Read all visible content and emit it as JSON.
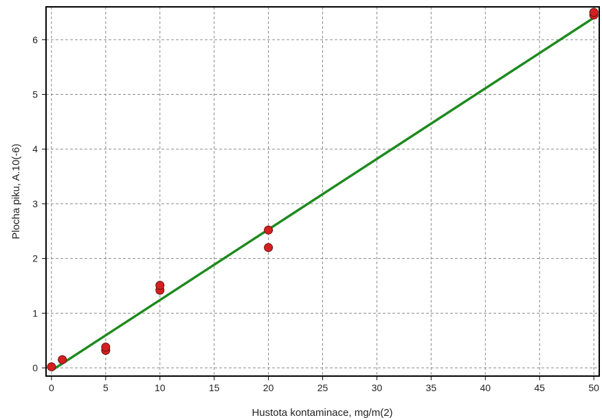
{
  "chart_data": {
    "type": "scatter",
    "xlabel": "Hustota kontaminace, mg/m(2)",
    "ylabel": "Plocha piku, A.10(-6)",
    "xlim": [
      -0.5,
      50.5
    ],
    "ylim": [
      -0.15,
      6.6
    ],
    "x_ticks": [
      0,
      5,
      10,
      15,
      20,
      25,
      30,
      35,
      40,
      45,
      50
    ],
    "y_ticks": [
      0,
      1,
      2,
      3,
      4,
      5,
      6
    ],
    "grid": true,
    "legend": "none",
    "series": [
      {
        "type": "scatter",
        "color": "#d42020",
        "points": [
          {
            "x": 0,
            "y": 0.02
          },
          {
            "x": 1,
            "y": 0.15
          },
          {
            "x": 5,
            "y": 0.32
          },
          {
            "x": 5,
            "y": 0.38
          },
          {
            "x": 10,
            "y": 1.42
          },
          {
            "x": 10,
            "y": 1.51
          },
          {
            "x": 20,
            "y": 2.2
          },
          {
            "x": 20,
            "y": 2.52
          },
          {
            "x": 50,
            "y": 6.45
          },
          {
            "x": 50,
            "y": 6.5
          }
        ]
      },
      {
        "type": "line",
        "color": "#1e8a1e",
        "points": [
          {
            "x": 0,
            "y": -0.05
          },
          {
            "x": 50,
            "y": 6.4
          }
        ]
      }
    ]
  }
}
